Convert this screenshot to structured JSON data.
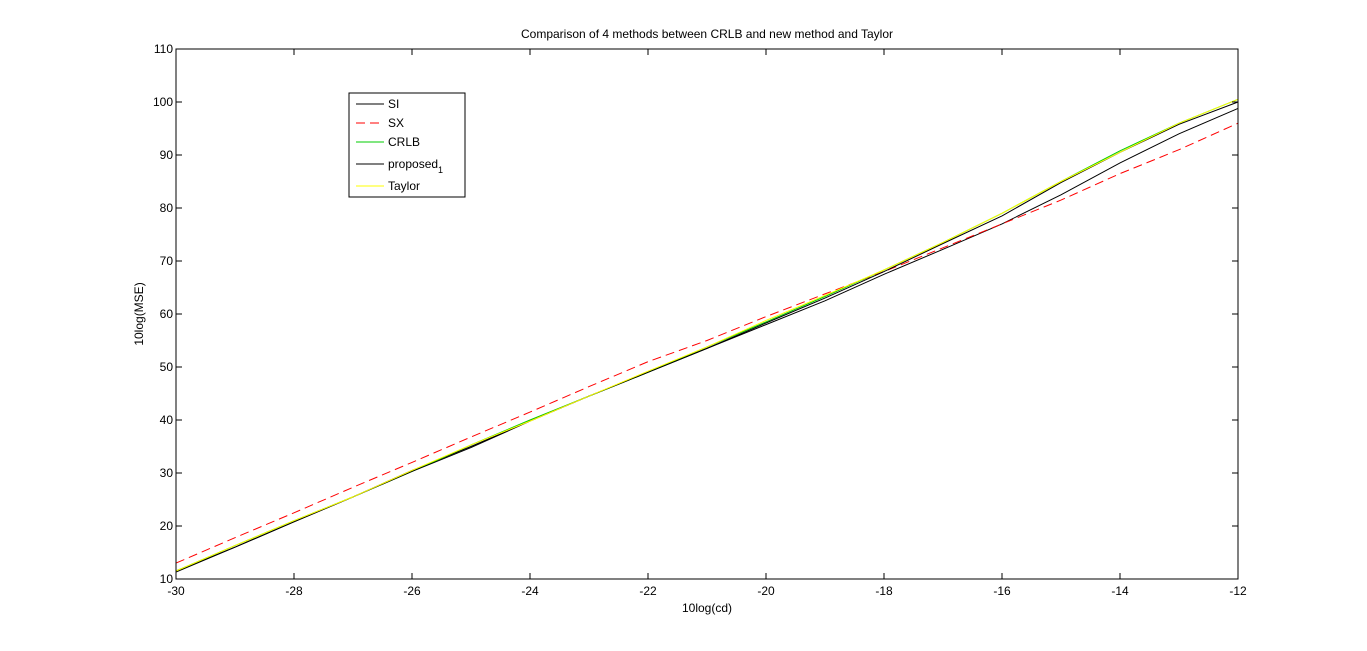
{
  "chart_data": {
    "type": "line",
    "title": "Comparison of 4 methods between CRLB and new method and Taylor",
    "xlabel": "10log(cd)",
    "ylabel": "10log(MSE)",
    "xlim": [
      -30,
      -12
    ],
    "ylim": [
      10,
      110
    ],
    "xticks": [
      -30,
      -28,
      -26,
      -24,
      -22,
      -20,
      -18,
      -16,
      -14,
      -12
    ],
    "yticks": [
      10,
      20,
      30,
      40,
      50,
      60,
      70,
      80,
      90,
      100,
      110
    ],
    "grid": false,
    "legend_position": "top-left",
    "x": [
      -30,
      -29,
      -28,
      -27,
      -26,
      -25,
      -24,
      -23,
      -22,
      -21,
      -20,
      -19,
      -18,
      -17,
      -16,
      -15,
      -14,
      -13,
      -12
    ],
    "series": [
      {
        "name": "SI",
        "label_main": "SI",
        "label_sub": "",
        "color": "#000000",
        "dash": "solid",
        "values": [
          11.5,
          16.0,
          20.8,
          25.5,
          30.5,
          35.0,
          39.8,
          44.5,
          49.0,
          53.5,
          58.0,
          62.5,
          67.5,
          72.2,
          77.0,
          82.5,
          88.5,
          94.0,
          98.8
        ]
      },
      {
        "name": "SX",
        "label_main": "SX",
        "label_sub": "",
        "color": "#ff0000",
        "dash": "dashed",
        "values": [
          13.0,
          17.8,
          22.5,
          27.3,
          32.0,
          36.8,
          41.5,
          46.3,
          51.0,
          55.0,
          59.5,
          63.8,
          68.0,
          72.5,
          77.0,
          81.5,
          86.5,
          91.0,
          96.0
        ]
      },
      {
        "name": "CRLB",
        "label_main": "CRLB",
        "label_sub": "",
        "color": "#00cc00",
        "dash": "solid",
        "values": [
          11.5,
          16.3,
          21.0,
          25.5,
          30.3,
          35.3,
          40.0,
          44.5,
          49.0,
          53.8,
          58.5,
          63.3,
          68.3,
          73.5,
          79.0,
          85.0,
          90.8,
          96.0,
          100.5
        ]
      },
      {
        "name": "proposed1",
        "label_main": "proposed",
        "label_sub": "1",
        "color": "#000000",
        "dash": "solid",
        "values": [
          11.3,
          16.0,
          20.8,
          25.5,
          30.3,
          34.8,
          39.8,
          44.5,
          49.0,
          53.5,
          58.3,
          63.0,
          68.0,
          73.3,
          78.5,
          84.8,
          90.5,
          95.8,
          100.0
        ]
      },
      {
        "name": "Taylor",
        "label_main": "Taylor",
        "label_sub": "",
        "color": "#ffff00",
        "dash": "solid",
        "values": [
          11.5,
          16.3,
          21.0,
          25.5,
          30.5,
          35.3,
          39.8,
          44.5,
          49.2,
          53.8,
          58.8,
          63.5,
          68.3,
          73.5,
          79.0,
          85.0,
          90.5,
          96.0,
          100.5
        ]
      }
    ]
  }
}
